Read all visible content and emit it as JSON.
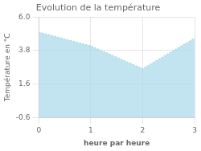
{
  "chart_data": {
    "type": "area",
    "title": "Evolution de la température",
    "xlabel": "heure par heure",
    "ylabel": "Température en °C",
    "x": [
      0,
      1,
      2,
      3
    ],
    "values": [
      5.0,
      4.1,
      2.6,
      4.6
    ],
    "xlim": [
      0,
      3
    ],
    "ylim": [
      -0.6,
      6.0
    ],
    "xticks": [
      0,
      1,
      2,
      3
    ],
    "yticks": [
      -0.6,
      1.6,
      3.8,
      {
        "value": 6.0,
        "label": "6.0"
      }
    ],
    "color": "#A8D8EA",
    "line_style": "dotted",
    "grid": true
  }
}
